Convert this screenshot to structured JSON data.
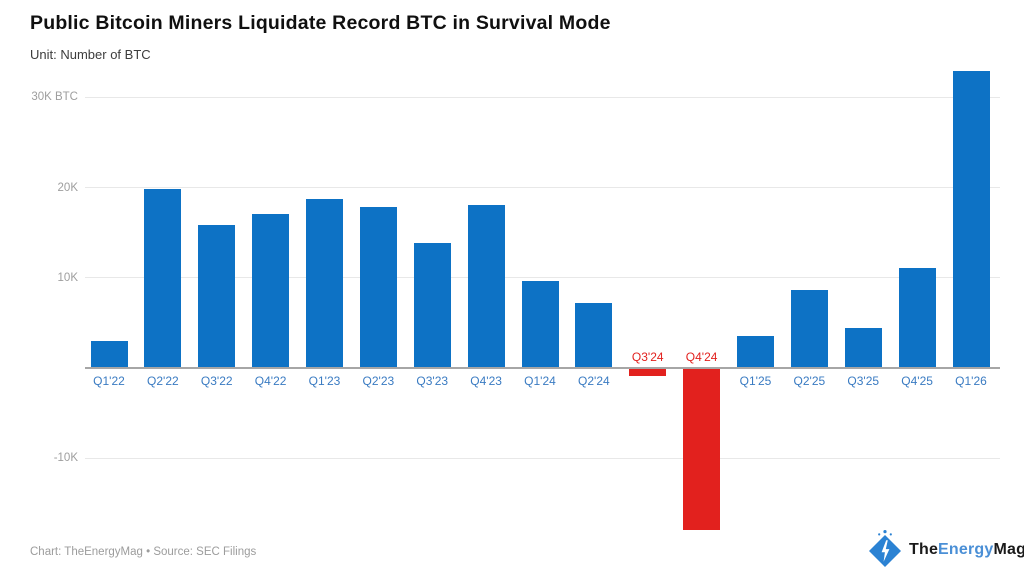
{
  "header": {
    "title": "Public Bitcoin Miners Liquidate Record BTC in Survival Mode",
    "subtitle": "Unit: Number of BTC"
  },
  "footer": {
    "credit": "Chart: TheEnergyMag • Source: SEC Filings"
  },
  "logo": {
    "the": "The",
    "energy": "Energy",
    "mag": "Mag",
    "icon": "lightning-bolt-diamond",
    "colors": {
      "diamond": "#2b82d3",
      "energy_text": "#4a8fd6",
      "dark_text": "#1a1a1a"
    }
  },
  "chart_data": {
    "type": "bar",
    "title": "Public Bitcoin Miners Liquidate Record BTC in Survival Mode",
    "subtitle": "Unit: Number of BTC",
    "unit": "BTC",
    "categories": [
      "Q1'22",
      "Q2'22",
      "Q3'22",
      "Q4'22",
      "Q1'23",
      "Q2'23",
      "Q3'23",
      "Q4'23",
      "Q1'24",
      "Q2'24",
      "Q3'24",
      "Q4'24",
      "Q1'25",
      "Q2'25",
      "Q3'25",
      "Q4'25",
      "Q1'26"
    ],
    "values": [
      3000,
      19800,
      15900,
      17100,
      18700,
      17800,
      13900,
      18100,
      9600,
      7200,
      -800,
      -17900,
      3600,
      8600,
      4400,
      11100,
      32900
    ],
    "yticks": [
      {
        "value": 30000,
        "label": "30K BTC"
      },
      {
        "value": 20000,
        "label": "20K"
      },
      {
        "value": 10000,
        "label": "10K"
      },
      {
        "value": -10000,
        "label": "-10K"
      }
    ],
    "ylim": [
      -18500,
      33500
    ],
    "grid": true,
    "legend": "none",
    "colors": {
      "bar_positive": "#0d72c5",
      "bar_negative": "#e2211e",
      "label_positive": "#3a7bc2",
      "label_negative": "#e2211e",
      "gridline": "#e8e8e8",
      "axis": "#a6a6a6",
      "ytick_text": "#9e9e9e"
    }
  }
}
